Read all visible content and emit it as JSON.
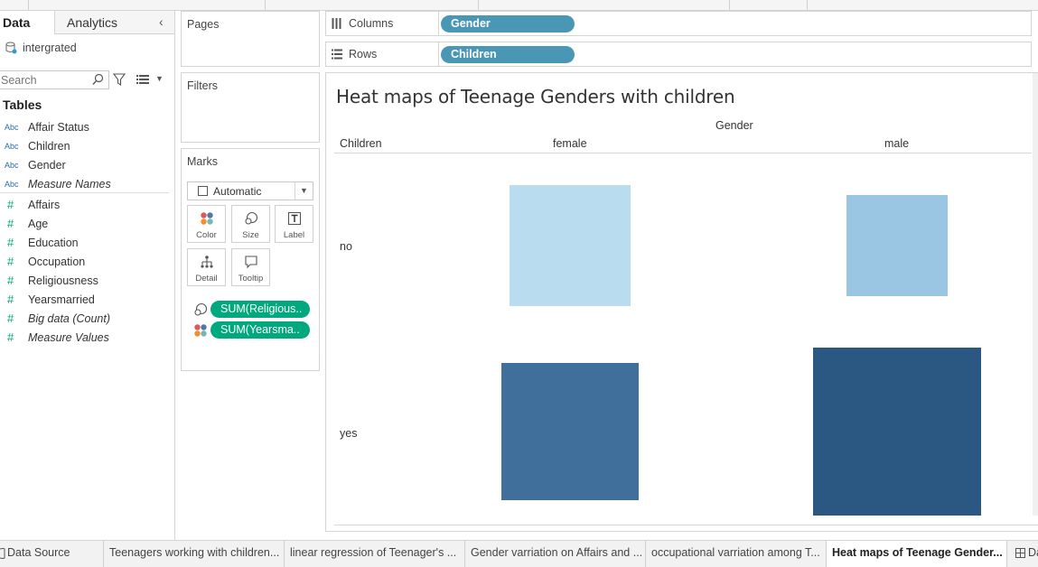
{
  "data_pane": {
    "tab_data": "Data",
    "tab_analytics": "Analytics",
    "datasource": "intergrated",
    "search_placeholder": "Search",
    "tables_title": "Tables",
    "dimensions": [
      {
        "type": "Abc",
        "name": "Affair Status",
        "italic": false
      },
      {
        "type": "Abc",
        "name": "Children",
        "italic": false
      },
      {
        "type": "Abc",
        "name": "Gender",
        "italic": false
      },
      {
        "type": "Abc",
        "name": "Measure Names",
        "italic": true
      }
    ],
    "measures": [
      {
        "type": "#",
        "name": "Affairs",
        "italic": false
      },
      {
        "type": "#",
        "name": "Age",
        "italic": false
      },
      {
        "type": "#",
        "name": "Education",
        "italic": false
      },
      {
        "type": "#",
        "name": "Occupation",
        "italic": false
      },
      {
        "type": "#",
        "name": "Religiousness",
        "italic": false
      },
      {
        "type": "#",
        "name": "Yearsmarried",
        "italic": false
      },
      {
        "type": "#",
        "name": "Big data (Count)",
        "italic": true
      },
      {
        "type": "#",
        "name": "Measure Values",
        "italic": true
      }
    ]
  },
  "cards": {
    "pages": "Pages",
    "filters": "Filters",
    "marks": "Marks",
    "mark_type": "Automatic",
    "buttons": {
      "color": "Color",
      "size": "Size",
      "label": "Label",
      "detail": "Detail",
      "tooltip": "Tooltip"
    },
    "pills": [
      {
        "encoding": "size",
        "label": "SUM(Religious.."
      },
      {
        "encoding": "color",
        "label": "SUM(Yearsma.."
      }
    ]
  },
  "shelves": {
    "columns_label": "Columns",
    "columns_pill": "Gender",
    "rows_label": "Rows",
    "rows_pill": "Children"
  },
  "view": {
    "title": "Heat maps of Teenage Genders with children",
    "column_field": "Gender",
    "row_field": "Children",
    "column_headers": [
      "female",
      "male"
    ],
    "row_headers": [
      "no",
      "yes"
    ]
  },
  "chart_data": {
    "type": "heatmap",
    "title": "Heat maps of Teenage Genders with children",
    "x_field": "Gender",
    "y_field": "Children",
    "x_categories": [
      "female",
      "male"
    ],
    "y_categories": [
      "no",
      "yes"
    ],
    "size_measure": "SUM(Religiousness)",
    "color_measure": "SUM(Yearsmarried)",
    "cells": [
      {
        "x": "female",
        "y": "no",
        "size_rel": 0.72,
        "color_rel": 0.05,
        "color": "#b9dcee"
      },
      {
        "x": "male",
        "y": "no",
        "size_rel": 0.6,
        "color_rel": 0.2,
        "color": "#9ac6e3"
      },
      {
        "x": "female",
        "y": "yes",
        "size_rel": 0.82,
        "color_rel": 0.75,
        "color": "#416f9b"
      },
      {
        "x": "male",
        "y": "yes",
        "size_rel": 1.0,
        "color_rel": 1.0,
        "color": "#2b5783"
      }
    ]
  },
  "sheet_tabs": [
    {
      "label": "Data Source",
      "active": false
    },
    {
      "label": "Teenagers working with children...",
      "active": false
    },
    {
      "label": "linear regression of Teenager's ...",
      "active": false
    },
    {
      "label": "Gender varriation on Affairs and ...",
      "active": false
    },
    {
      "label": "occupational varriation among T...",
      "active": false
    },
    {
      "label": "Heat maps of Teenage Gender...",
      "active": true
    },
    {
      "label": "Da",
      "active": false
    }
  ]
}
